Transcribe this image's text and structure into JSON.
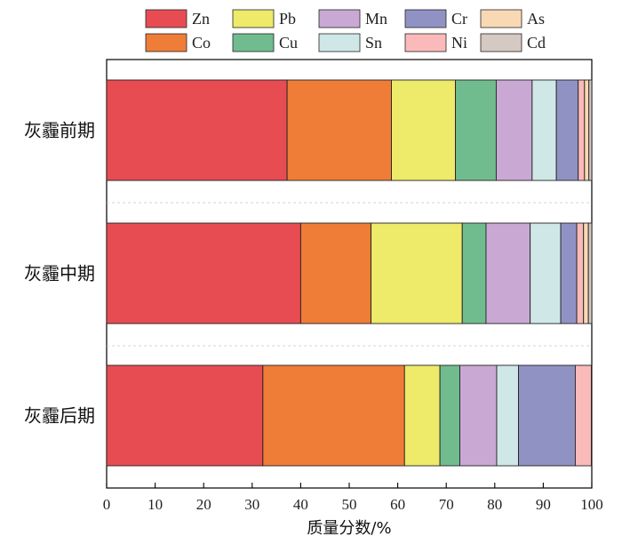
{
  "chart_data": {
    "type": "bar",
    "orientation": "horizontal",
    "stacked": true,
    "xlabel": "质量分数/%",
    "xlim": [
      0,
      100
    ],
    "xticks": [
      0,
      10,
      20,
      30,
      40,
      50,
      60,
      70,
      80,
      90,
      100
    ],
    "categories": [
      "灰霾前期",
      "灰霾中期",
      "灰霾后期"
    ],
    "legend_position": "top",
    "grid": false,
    "series": [
      {
        "name": "Zn",
        "color": "#e84c53",
        "values": [
          37.2,
          40.0,
          32.2
        ]
      },
      {
        "name": "Co",
        "color": "#ef7d38",
        "values": [
          21.5,
          14.5,
          29.2
        ]
      },
      {
        "name": "Pb",
        "color": "#eeea6a",
        "values": [
          13.2,
          18.8,
          7.3
        ]
      },
      {
        "name": "Cu",
        "color": "#71bc8f",
        "values": [
          8.4,
          4.9,
          4.1
        ]
      },
      {
        "name": "Mn",
        "color": "#c9a9d3",
        "values": [
          7.4,
          9.1,
          7.6
        ]
      },
      {
        "name": "Sn",
        "color": "#cfe8e7",
        "values": [
          5.0,
          6.3,
          4.5
        ]
      },
      {
        "name": "Cr",
        "color": "#9192c4",
        "values": [
          4.5,
          3.3,
          11.7
        ]
      },
      {
        "name": "Ni",
        "color": "#fbbaba",
        "values": [
          1.3,
          1.4,
          3.3
        ]
      },
      {
        "name": "As",
        "color": "#f9d8b4",
        "values": [
          0.9,
          1.0,
          0.1
        ]
      },
      {
        "name": "Cd",
        "color": "#d5c9c3",
        "values": [
          0.6,
          0.7,
          0.0
        ]
      }
    ]
  }
}
